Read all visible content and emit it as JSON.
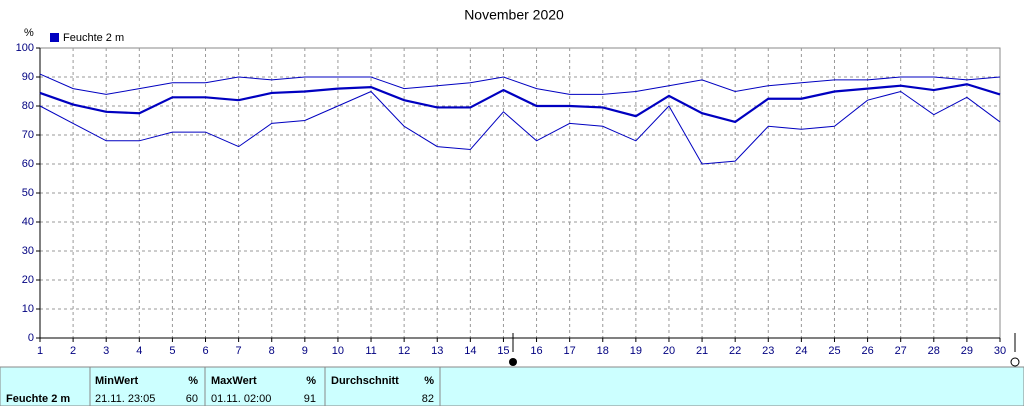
{
  "chart_data": {
    "type": "line",
    "title": "November 2020",
    "y_label": "%",
    "x": [
      1,
      2,
      3,
      4,
      5,
      6,
      7,
      8,
      9,
      10,
      11,
      12,
      13,
      14,
      15,
      16,
      17,
      18,
      19,
      20,
      21,
      22,
      23,
      24,
      25,
      26,
      27,
      28,
      29,
      30
    ],
    "xlim": [
      1,
      30
    ],
    "xticks": [
      1,
      2,
      3,
      4,
      5,
      6,
      7,
      8,
      9,
      10,
      11,
      12,
      13,
      14,
      15,
      16,
      17,
      18,
      19,
      20,
      21,
      22,
      23,
      24,
      25,
      26,
      27,
      28,
      29,
      30
    ],
    "ylim": [
      0,
      100
    ],
    "yticks": [
      0,
      10,
      20,
      30,
      40,
      50,
      60,
      70,
      80,
      90,
      100
    ],
    "grid": true,
    "series": [
      {
        "name": "Feuchte  2 m",
        "color": "#0000c0",
        "values": [
          84.5,
          80.5,
          78,
          77.5,
          83,
          83,
          82,
          84.5,
          85,
          86,
          86.5,
          82,
          79.5,
          79.5,
          85.5,
          80,
          80,
          79.5,
          76.5,
          83.5,
          77.5,
          74.5,
          82.5,
          82.5,
          85,
          86,
          87,
          85.5,
          87.5,
          84
        ],
        "max": [
          91,
          86,
          84,
          86,
          88,
          88,
          90,
          89,
          90,
          90,
          90,
          86,
          87,
          88,
          90,
          86,
          84,
          84,
          85,
          87,
          89,
          85,
          87,
          88,
          89,
          89,
          90,
          90,
          89,
          90
        ],
        "min": [
          80,
          74,
          68,
          68,
          71,
          71,
          66,
          74,
          75,
          80,
          85,
          73,
          66,
          65,
          78,
          68,
          74,
          73,
          68,
          80,
          60,
          61,
          73,
          72,
          73,
          82,
          85,
          77,
          83,
          74.5
        ]
      }
    ]
  },
  "stats": {
    "label": "Feuchte  2 m",
    "columns": [
      {
        "header": "MinWert",
        "unit": "%",
        "time": "21.11.  23:05",
        "value": 60
      },
      {
        "header": "MaxWert",
        "unit": "%",
        "time": "01.11.  02:00",
        "value": 91
      },
      {
        "header": "Durchschnitt",
        "unit": "%",
        "value": 82
      }
    ]
  }
}
